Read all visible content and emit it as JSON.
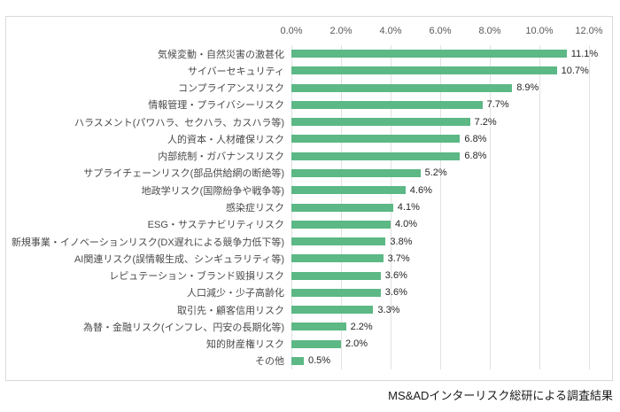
{
  "chart_data": {
    "type": "bar",
    "orientation": "horizontal",
    "title": "",
    "xlabel": "",
    "ylabel": "",
    "xlim": [
      0,
      12
    ],
    "grid": true,
    "tick_position": "top",
    "bar_color": "#5CB885",
    "x_ticks": [
      "0.0%",
      "2.0%",
      "4.0%",
      "6.0%",
      "8.0%",
      "10.0%",
      "12.0%"
    ],
    "categories": [
      "気候変動・自然災害の激甚化",
      "サイバーセキュリティ",
      "コンプライアンスリスク",
      "情報管理・プライバシーリスク",
      "ハラスメント(パワハラ、セクハラ、カスハラ等)",
      "人的資本・人材確保リスク",
      "内部統制・ガバナンスリスク",
      "サプライチェーンリスク(部品供給網の断絶等)",
      "地政学リスク(国際紛争や戦争等)",
      "感染症リスク",
      "ESG・サステナビリティリスク",
      "新規事業・イノベーションリスク(DX遅れによる競争力低下等)",
      "AI関連リスク(誤情報生成、シンギュラリティ等)",
      "レピュテーション・ブランド毀損リスク",
      "人口減少・少子高齢化",
      "取引先・顧客信用リスク",
      "為替・金融リスク(インフレ、円安の長期化等)",
      "知的財産権リスク",
      "その他"
    ],
    "values": [
      11.1,
      10.7,
      8.9,
      7.7,
      7.2,
      6.8,
      6.8,
      5.2,
      4.6,
      4.1,
      4.0,
      3.8,
      3.7,
      3.6,
      3.6,
      3.3,
      2.2,
      2.0,
      0.5
    ],
    "value_labels": [
      "11.1%",
      "10.7%",
      "8.9%",
      "7.7%",
      "7.2%",
      "6.8%",
      "6.8%",
      "5.2%",
      "4.6%",
      "4.1%",
      "4.0%",
      "3.8%",
      "3.7%",
      "3.6%",
      "3.6%",
      "3.3%",
      "2.2%",
      "2.0%",
      "0.5%"
    ]
  },
  "footer": {
    "source": "MS&ADインターリスク総研による調査結果"
  }
}
